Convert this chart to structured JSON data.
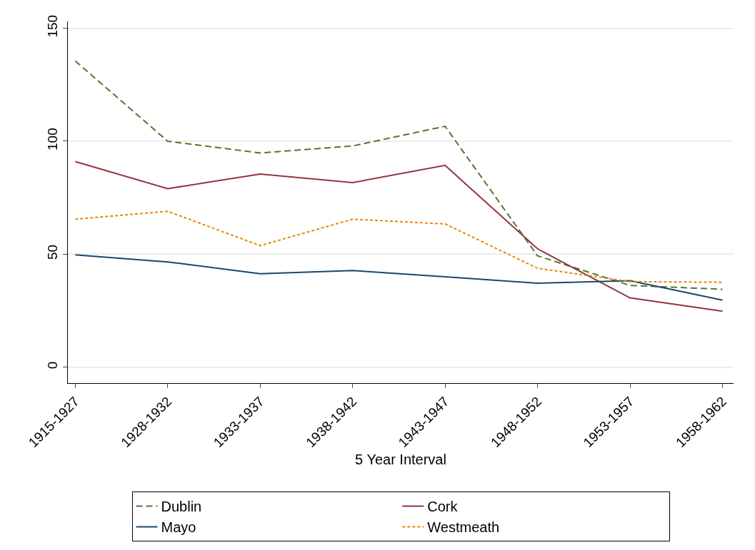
{
  "chart_data": {
    "type": "line",
    "xlabel": "5 Year Interval",
    "categories": [
      "1915-1927",
      "1928-1932",
      "1933-1937",
      "1938-1942",
      "1943-1947",
      "1948-1952",
      "1953-1957",
      "1958-1962"
    ],
    "series": [
      {
        "name": "Dublin",
        "color": "#55752f",
        "line_style": "dashed",
        "values": [
          135.5,
          100,
          94.8,
          97.9,
          106.6,
          49.3,
          36.2,
          34.5
        ]
      },
      {
        "name": "Cork",
        "color": "#90353b",
        "line_style": "solid",
        "values": [
          91,
          79,
          85.5,
          81.7,
          89.3,
          52.4,
          30.7,
          24.8
        ]
      },
      {
        "name": "Mayo",
        "color": "#1a476f",
        "line_style": "solid",
        "values": [
          49.7,
          46.6,
          41.4,
          42.8,
          40,
          37.2,
          38.3,
          29.7
        ]
      },
      {
        "name": "Westmeath",
        "color": "#e8850c",
        "line_style": "dotted",
        "values": [
          65.5,
          69,
          53.8,
          65.5,
          63.4,
          43.8,
          37.9,
          37.6
        ]
      }
    ],
    "ylim": [
      -7,
      153
    ],
    "yticks": [
      0,
      50,
      100,
      150
    ],
    "grid": "y",
    "legend": "bottom",
    "marker": "none"
  }
}
